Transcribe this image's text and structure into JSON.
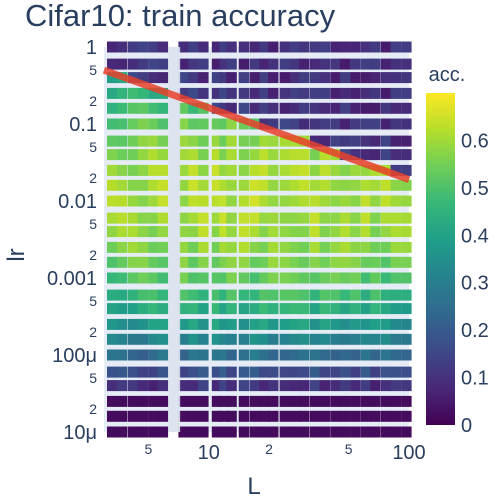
{
  "chart_data": {
    "type": "heatmap",
    "title": "Cifar10: train accuracy",
    "xlabel": "L",
    "ylabel": "lr",
    "x_scale": "log",
    "y_scale": "log",
    "x_range": [
      3,
      100
    ],
    "y_range": [
      1e-05,
      1
    ],
    "x_tick_labels": {
      "major": [
        {
          "value": 10,
          "label": "10"
        },
        {
          "value": 100,
          "label": "100"
        }
      ],
      "minor": [
        {
          "value": 5,
          "label": "5"
        },
        {
          "value": 20,
          "label": "2"
        },
        {
          "value": 50,
          "label": "5"
        }
      ]
    },
    "y_tick_labels": {
      "major": [
        {
          "value": 1,
          "label": "1"
        },
        {
          "value": 0.1,
          "label": "0.1"
        },
        {
          "value": 0.01,
          "label": "0.01"
        },
        {
          "value": 0.001,
          "label": "0.001"
        },
        {
          "value": 0.0001,
          "label": "100μ"
        },
        {
          "value": 1e-05,
          "label": "10μ"
        }
      ],
      "minor": [
        {
          "value": 0.5,
          "label": "5"
        },
        {
          "value": 0.2,
          "label": "2"
        },
        {
          "value": 0.05,
          "label": "5"
        },
        {
          "value": 0.02,
          "label": "2"
        },
        {
          "value": 0.005,
          "label": "5"
        },
        {
          "value": 0.002,
          "label": "2"
        },
        {
          "value": 0.0005,
          "label": "5"
        },
        {
          "value": 0.0002,
          "label": "2"
        },
        {
          "value": 5e-05,
          "label": "5"
        },
        {
          "value": 2e-05,
          "label": "2"
        }
      ]
    },
    "colorbar": {
      "title": "acc.",
      "range": [
        0,
        0.7
      ],
      "ticks": [
        "0",
        "0.1",
        "0.2",
        "0.3",
        "0.4",
        "0.5",
        "0.6"
      ],
      "colorscale": "viridis"
    },
    "x_columns": [
      3.3,
      3.7,
      4.2,
      4.7,
      5.3,
      5.9,
      7.5,
      8.4,
      9.4,
      11,
      12,
      13,
      15,
      17,
      19,
      21,
      24,
      27,
      30,
      34,
      38,
      43,
      48,
      54,
      61,
      68,
      77,
      86,
      97
    ],
    "lr_rows": [
      1.0,
      0.6,
      0.4,
      0.25,
      0.16,
      0.1,
      0.06,
      0.04,
      0.025,
      0.016,
      0.01,
      0.006,
      0.004,
      0.0025,
      0.0016,
      0.001,
      0.0006,
      0.0004,
      0.00025,
      0.00016,
      0.0001,
      6e-05,
      4e-05,
      2.5e-05,
      1.6e-05,
      1e-05
    ],
    "boundary_line": {
      "x": [
        3,
        100
      ],
      "y": [
        0.5,
        0.019
      ],
      "color": "#e8412c"
    },
    "accent_colors": {
      "gap_band": "#dde2ef",
      "grid_bg": "#e5ecf6"
    }
  }
}
